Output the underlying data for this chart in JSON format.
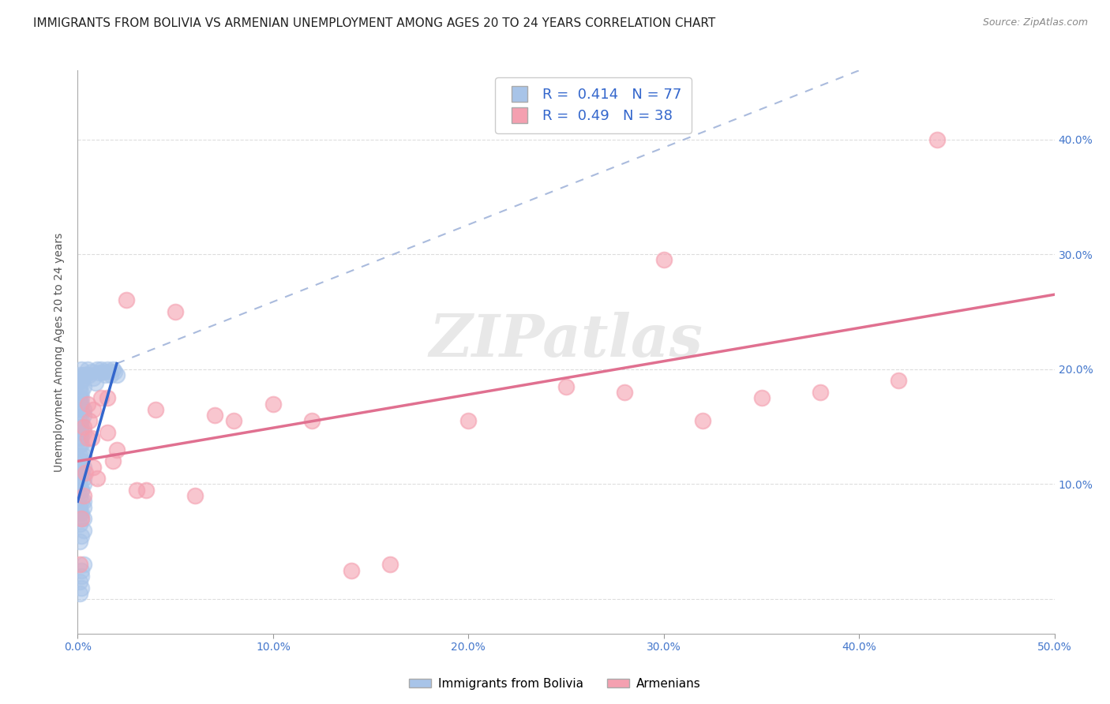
{
  "title": "IMMIGRANTS FROM BOLIVIA VS ARMENIAN UNEMPLOYMENT AMONG AGES 20 TO 24 YEARS CORRELATION CHART",
  "source": "Source: ZipAtlas.com",
  "ylabel": "Unemployment Among Ages 20 to 24 years",
  "xlim": [
    0.0,
    0.5
  ],
  "ylim": [
    -0.03,
    0.46
  ],
  "xticks": [
    0.0,
    0.1,
    0.2,
    0.3,
    0.4,
    0.5
  ],
  "yticks": [
    0.0,
    0.1,
    0.2,
    0.3,
    0.4
  ],
  "xtick_labels": [
    "0.0%",
    "10.0%",
    "20.0%",
    "30.0%",
    "40.0%",
    "50.0%"
  ],
  "right_ytick_labels": [
    "",
    "10.0%",
    "20.0%",
    "30.0%",
    "40.0%"
  ],
  "bolivia_R": 0.414,
  "bolivia_N": 77,
  "armenian_R": 0.49,
  "armenian_N": 38,
  "bolivia_color": "#a8c4e8",
  "armenian_color": "#f4a0b0",
  "bolivia_line_color": "#3366cc",
  "armenian_line_color": "#e07090",
  "bolivia_dash_color": "#b0c8e8",
  "bolivia_x": [
    0.001,
    0.002,
    0.001,
    0.003,
    0.002,
    0.001,
    0.002,
    0.003,
    0.001,
    0.002,
    0.003,
    0.002,
    0.001,
    0.003,
    0.002,
    0.001,
    0.002,
    0.001,
    0.002,
    0.003,
    0.002,
    0.001,
    0.002,
    0.001,
    0.003,
    0.002,
    0.001,
    0.002,
    0.003,
    0.002,
    0.001,
    0.002,
    0.001,
    0.002,
    0.003,
    0.001,
    0.002,
    0.003,
    0.002,
    0.001,
    0.003,
    0.002,
    0.001,
    0.002,
    0.003,
    0.001,
    0.002,
    0.003,
    0.001,
    0.002,
    0.003,
    0.004,
    0.005,
    0.006,
    0.007,
    0.008,
    0.009,
    0.01,
    0.011,
    0.012,
    0.013,
    0.014,
    0.015,
    0.016,
    0.017,
    0.018,
    0.019,
    0.02,
    0.001,
    0.002,
    0.003,
    0.002,
    0.001,
    0.002,
    0.001,
    0.002,
    0.003
  ],
  "bolivia_y": [
    0.065,
    0.07,
    0.075,
    0.08,
    0.085,
    0.09,
    0.095,
    0.1,
    0.105,
    0.11,
    0.115,
    0.12,
    0.125,
    0.13,
    0.135,
    0.14,
    0.145,
    0.15,
    0.155,
    0.16,
    0.165,
    0.17,
    0.175,
    0.18,
    0.185,
    0.19,
    0.195,
    0.2,
    0.195,
    0.19,
    0.185,
    0.18,
    0.175,
    0.17,
    0.165,
    0.155,
    0.15,
    0.145,
    0.14,
    0.135,
    0.125,
    0.12,
    0.115,
    0.11,
    0.105,
    0.1,
    0.095,
    0.085,
    0.08,
    0.075,
    0.07,
    0.195,
    0.2,
    0.195,
    0.198,
    0.192,
    0.188,
    0.2,
    0.197,
    0.2,
    0.198,
    0.195,
    0.2,
    0.198,
    0.195,
    0.2,
    0.198,
    0.195,
    0.05,
    0.055,
    0.06,
    0.02,
    0.015,
    0.01,
    0.005,
    0.025,
    0.03
  ],
  "armenian_x": [
    0.001,
    0.002,
    0.003,
    0.004,
    0.005,
    0.006,
    0.007,
    0.008,
    0.01,
    0.012,
    0.015,
    0.018,
    0.02,
    0.025,
    0.03,
    0.035,
    0.04,
    0.05,
    0.06,
    0.07,
    0.08,
    0.1,
    0.12,
    0.14,
    0.16,
    0.2,
    0.25,
    0.28,
    0.3,
    0.32,
    0.35,
    0.38,
    0.42,
    0.44,
    0.003,
    0.005,
    0.008,
    0.015
  ],
  "armenian_y": [
    0.03,
    0.07,
    0.09,
    0.11,
    0.14,
    0.155,
    0.14,
    0.115,
    0.105,
    0.175,
    0.175,
    0.12,
    0.13,
    0.26,
    0.095,
    0.095,
    0.165,
    0.25,
    0.09,
    0.16,
    0.155,
    0.17,
    0.155,
    0.025,
    0.03,
    0.155,
    0.185,
    0.18,
    0.295,
    0.155,
    0.175,
    0.18,
    0.19,
    0.4,
    0.15,
    0.17,
    0.165,
    0.145
  ],
  "watermark": "ZIPatlas",
  "background_color": "#ffffff",
  "grid_color": "#dddddd",
  "title_fontsize": 11,
  "axis_label_fontsize": 10,
  "tick_fontsize": 10,
  "legend_fontsize": 12
}
